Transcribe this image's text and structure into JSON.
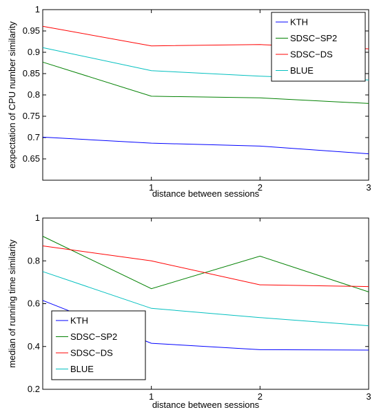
{
  "chart_data": [
    {
      "type": "line",
      "title": "",
      "xlabel": "distance between sessions",
      "ylabel": "expectation of CPU number similarity",
      "x": [
        0,
        1,
        2,
        3
      ],
      "xticks": [
        "1",
        "2",
        "3"
      ],
      "xlim": [
        0,
        3
      ],
      "ylim": [
        0.6,
        1.0
      ],
      "yticks": [
        "0.65",
        "0.7",
        "0.75",
        "0.8",
        "0.85",
        "0.9",
        "0.95",
        "1"
      ],
      "grid": false,
      "legend_position": "top-right",
      "series": [
        {
          "name": "KTH",
          "color": "#0000ff",
          "values": [
            0.701,
            0.687,
            0.68,
            0.662
          ]
        },
        {
          "name": "SDSC−SP2",
          "color": "#008000",
          "values": [
            0.877,
            0.797,
            0.793,
            0.78
          ]
        },
        {
          "name": "SDSC−DS",
          "color": "#ff0000",
          "values": [
            0.961,
            0.915,
            0.918,
            0.908
          ]
        },
        {
          "name": "BLUE",
          "color": "#00bfbf",
          "values": [
            0.911,
            0.857,
            0.844,
            0.835
          ]
        }
      ]
    },
    {
      "type": "line",
      "title": "",
      "xlabel": "distance between sessions",
      "ylabel": "median of running time similarity",
      "x": [
        0,
        1,
        2,
        3
      ],
      "xticks": [
        "1",
        "2",
        "3"
      ],
      "xlim": [
        0,
        3
      ],
      "ylim": [
        0.2,
        1.0
      ],
      "yticks": [
        "0.2",
        "0.4",
        "0.6",
        "0.8",
        "1"
      ],
      "grid": false,
      "legend_position": "bottom-left",
      "series": [
        {
          "name": "KTH",
          "color": "#0000ff",
          "values": [
            0.615,
            0.415,
            0.385,
            0.383
          ]
        },
        {
          "name": "SDSC−SP2",
          "color": "#008000",
          "values": [
            0.915,
            0.67,
            0.822,
            0.655
          ]
        },
        {
          "name": "SDSC−DS",
          "color": "#ff0000",
          "values": [
            0.87,
            0.8,
            0.688,
            0.68
          ]
        },
        {
          "name": "BLUE",
          "color": "#00bfbf",
          "values": [
            0.75,
            0.578,
            0.535,
            0.497
          ]
        }
      ]
    }
  ]
}
